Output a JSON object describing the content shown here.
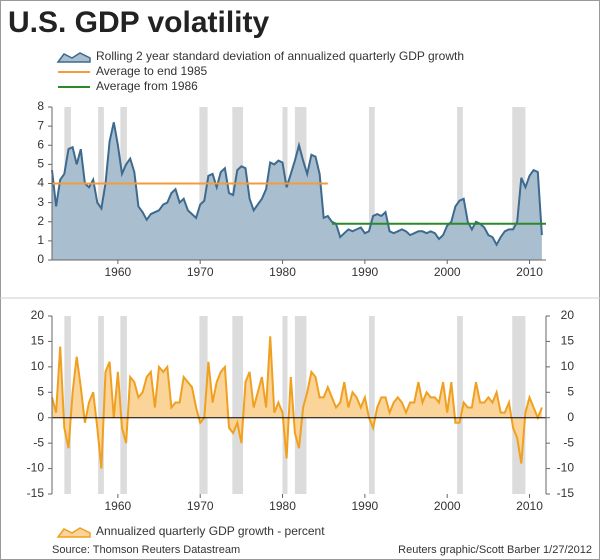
{
  "title": "U.S. GDP volatility",
  "source": "Source: Thomson Reuters Datastream",
  "credit": "Reuters graphic/Scott Barber 1/27/2012",
  "chart_data": [
    {
      "type": "area",
      "xlim": [
        1952,
        2012
      ],
      "xticks": [
        1960,
        1970,
        1980,
        1990,
        2000,
        2010
      ],
      "ylim": [
        0,
        8
      ],
      "yticks": [
        0,
        1,
        2,
        3,
        4,
        5,
        6,
        7,
        8
      ],
      "shaded_periods": [
        [
          1953.5,
          1954.3
        ],
        [
          1957.6,
          1958.3
        ],
        [
          1960.3,
          1961.1
        ],
        [
          1969.9,
          1970.9
        ],
        [
          1973.9,
          1975.2
        ],
        [
          1980.0,
          1980.6
        ],
        [
          1981.5,
          1982.9
        ],
        [
          1990.5,
          1991.2
        ],
        [
          2001.2,
          2001.9
        ],
        [
          2007.9,
          2009.5
        ]
      ],
      "shade_color": "#dcdcdc",
      "series": [
        {
          "name": "Rolling 2 year standard deviation of annualized quarterly GDP growth",
          "style": "area",
          "color": "#3d6a8e",
          "fill": "#a9bfd0",
          "x": [
            1952,
            1952.5,
            1953,
            1953.5,
            1954,
            1954.5,
            1955,
            1955.5,
            1956,
            1956.5,
            1957,
            1957.5,
            1958,
            1958.5,
            1959,
            1959.5,
            1960,
            1960.5,
            1961,
            1961.5,
            1962,
            1962.5,
            1963,
            1963.5,
            1964,
            1964.5,
            1965,
            1965.5,
            1966,
            1966.5,
            1967,
            1967.5,
            1968,
            1968.5,
            1969,
            1969.5,
            1970,
            1970.5,
            1971,
            1971.5,
            1972,
            1972.5,
            1973,
            1973.5,
            1974,
            1974.5,
            1975,
            1975.5,
            1976,
            1976.5,
            1977,
            1977.5,
            1978,
            1978.5,
            1979,
            1979.5,
            1980,
            1980.5,
            1981,
            1981.5,
            1982,
            1982.5,
            1983,
            1983.5,
            1984,
            1984.5,
            1985,
            1985.5,
            1986,
            1986.5,
            1987,
            1987.5,
            1988,
            1988.5,
            1989,
            1989.5,
            1990,
            1990.5,
            1991,
            1991.5,
            1992,
            1992.5,
            1993,
            1993.5,
            1994,
            1994.5,
            1995,
            1995.5,
            1996,
            1996.5,
            1997,
            1997.5,
            1998,
            1998.5,
            1999,
            1999.5,
            2000,
            2000.5,
            2001,
            2001.5,
            2002,
            2002.5,
            2003,
            2003.5,
            2004,
            2004.5,
            2005,
            2005.5,
            2006,
            2006.5,
            2007,
            2007.5,
            2008,
            2008.5,
            2009,
            2009.5,
            2010,
            2010.5,
            2011,
            2011.5
          ],
          "values": [
            4.7,
            2.8,
            4.2,
            4.5,
            5.8,
            5.9,
            5.0,
            5.8,
            4.0,
            3.8,
            4.2,
            3.0,
            2.7,
            4.0,
            6.2,
            7.2,
            6.0,
            4.5,
            5.0,
            5.3,
            4.6,
            2.8,
            2.5,
            2.1,
            2.4,
            2.5,
            2.6,
            2.9,
            3.0,
            3.5,
            3.7,
            3.0,
            3.2,
            2.6,
            2.4,
            2.2,
            2.9,
            3.1,
            4.4,
            4.5,
            3.8,
            4.6,
            4.8,
            3.5,
            3.4,
            4.7,
            4.9,
            4.8,
            3.2,
            2.6,
            2.9,
            3.2,
            3.7,
            5.1,
            5.0,
            5.2,
            5.1,
            3.8,
            4.5,
            5.2,
            6.0,
            5.2,
            4.5,
            5.5,
            5.4,
            4.5,
            2.2,
            2.3,
            2.0,
            1.9,
            1.2,
            1.4,
            1.6,
            1.5,
            1.6,
            1.7,
            1.4,
            1.5,
            2.3,
            2.4,
            2.3,
            2.5,
            1.5,
            1.4,
            1.5,
            1.6,
            1.5,
            1.3,
            1.4,
            1.5,
            1.5,
            1.4,
            1.5,
            1.4,
            1.1,
            1.3,
            1.8,
            2.0,
            2.8,
            3.1,
            3.2,
            2.0,
            1.6,
            2.0,
            1.9,
            1.7,
            1.3,
            1.2,
            0.8,
            1.2,
            1.5,
            1.6,
            1.6,
            2.0,
            4.3,
            3.8,
            4.4,
            4.7,
            4.6,
            1.3
          ]
        },
        {
          "name": "Average to end 1985",
          "style": "line",
          "color": "#f39c3c",
          "x": [
            1952,
            1985.5
          ],
          "values": [
            4.0,
            4.0
          ]
        },
        {
          "name": "Average from 1986",
          "style": "line",
          "color": "#2a8a2a",
          "x": [
            1986,
            2012
          ],
          "values": [
            1.9,
            1.9
          ]
        }
      ]
    },
    {
      "type": "area",
      "xlim": [
        1952,
        2012
      ],
      "xticks": [
        1960,
        1970,
        1980,
        1990,
        2000,
        2010
      ],
      "ylim": [
        -15,
        20
      ],
      "yticks": [
        -15,
        -10,
        -5,
        0,
        5,
        10,
        15,
        20
      ],
      "y2lim": [
        -15,
        20
      ],
      "y2ticks": [
        -15,
        -10,
        -5,
        0,
        5,
        10,
        15,
        20
      ],
      "shaded_periods": [
        [
          1953.5,
          1954.3
        ],
        [
          1957.6,
          1958.3
        ],
        [
          1960.3,
          1961.1
        ],
        [
          1969.9,
          1970.9
        ],
        [
          1973.9,
          1975.2
        ],
        [
          1980.0,
          1980.6
        ],
        [
          1981.5,
          1982.9
        ],
        [
          1990.5,
          1991.2
        ],
        [
          2001.2,
          2001.9
        ],
        [
          2007.9,
          2009.5
        ]
      ],
      "shade_color": "#dcdcdc",
      "series": [
        {
          "name": "Annualized quarterly GDP growth - percent",
          "style": "area",
          "color": "#f0a020",
          "fill": "#fbd49a",
          "x": [
            1952,
            1952.5,
            1953,
            1953.5,
            1954,
            1954.5,
            1955,
            1955.5,
            1956,
            1956.5,
            1957,
            1957.5,
            1958,
            1958.5,
            1959,
            1959.5,
            1960,
            1960.5,
            1961,
            1961.5,
            1962,
            1962.5,
            1963,
            1963.5,
            1964,
            1964.5,
            1965,
            1965.5,
            1966,
            1966.5,
            1967,
            1967.5,
            1968,
            1968.5,
            1969,
            1969.5,
            1970,
            1970.5,
            1971,
            1971.5,
            1972,
            1972.5,
            1973,
            1973.5,
            1974,
            1974.5,
            1975,
            1975.5,
            1976,
            1976.5,
            1977,
            1977.5,
            1978,
            1978.5,
            1979,
            1979.5,
            1980,
            1980.5,
            1981,
            1981.5,
            1982,
            1982.5,
            1983,
            1983.5,
            1984,
            1984.5,
            1985,
            1985.5,
            1986,
            1986.5,
            1987,
            1987.5,
            1988,
            1988.5,
            1989,
            1989.5,
            1990,
            1990.5,
            1991,
            1991.5,
            1992,
            1992.5,
            1993,
            1993.5,
            1994,
            1994.5,
            1995,
            1995.5,
            1996,
            1996.5,
            1997,
            1997.5,
            1998,
            1998.5,
            1999,
            1999.5,
            2000,
            2000.5,
            2001,
            2001.5,
            2002,
            2002.5,
            2003,
            2003.5,
            2004,
            2004.5,
            2005,
            2005.5,
            2006,
            2006.5,
            2007,
            2007.5,
            2008,
            2008.5,
            2009,
            2009.5,
            2010,
            2010.5,
            2011,
            2011.5
          ],
          "values": [
            4,
            1,
            14,
            -2,
            -6,
            5,
            12,
            6,
            -1,
            3,
            5,
            -2,
            -10,
            9,
            11,
            0,
            9,
            -2,
            -5,
            8,
            7,
            4,
            5,
            8,
            9,
            2,
            10,
            9,
            10,
            2,
            3,
            3,
            8,
            7,
            6,
            2,
            -1,
            0,
            11,
            3,
            7,
            9,
            10,
            -2,
            -3,
            -1,
            -5,
            7,
            9,
            2,
            5,
            8,
            2,
            16,
            1,
            3,
            1,
            -8,
            8,
            -3,
            -6,
            2,
            5,
            9,
            8,
            4,
            4,
            6,
            4,
            2,
            3,
            7,
            2,
            5,
            4,
            2,
            4,
            0,
            -2,
            2,
            4,
            4,
            1,
            3,
            4,
            3,
            1,
            3,
            3,
            7,
            3,
            5,
            4,
            4,
            3,
            7,
            1,
            7,
            -1,
            -1,
            3,
            2,
            2,
            7,
            3,
            3,
            4,
            3,
            5,
            1,
            1,
            3,
            -2,
            -4,
            -9,
            1,
            4,
            2,
            0,
            2
          ]
        }
      ]
    }
  ]
}
